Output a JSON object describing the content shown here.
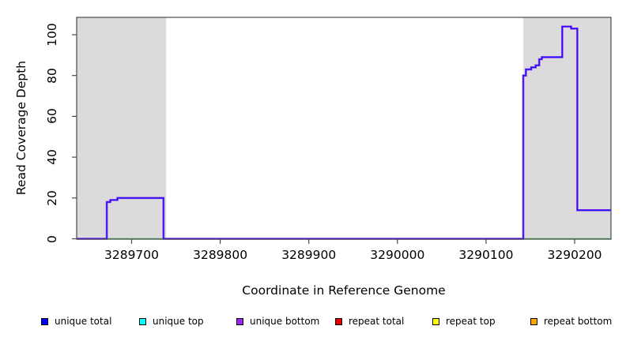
{
  "chart_data": {
    "type": "line",
    "step_mode": "after",
    "title": "",
    "xlabel": "Coordinate in Reference Genome",
    "ylabel": "Read Coverage Depth",
    "xlim": [
      3289638,
      3290241
    ],
    "ylim": [
      0,
      108.5
    ],
    "grid": false,
    "legend_position": "bottom",
    "x_tick_labels": [
      "3289700",
      "3289800",
      "3289900",
      "3290000",
      "3290100",
      "3290200"
    ],
    "x_tick_values": [
      3289700,
      3289800,
      3289900,
      3290000,
      3290100,
      3290200
    ],
    "y_tick_labels": [
      "0",
      "20",
      "40",
      "60",
      "80",
      "100"
    ],
    "y_tick_values": [
      0,
      20,
      40,
      60,
      80,
      100
    ],
    "shaded_regions": {
      "meaning": "repeat regions",
      "color": "#DBDBDB",
      "ranges": [
        [
          3289638,
          3289739
        ],
        [
          3290142,
          3290241
        ]
      ]
    },
    "coverage_steps": [
      [
        3289638,
        0
      ],
      [
        3289672,
        18
      ],
      [
        3289676,
        19
      ],
      [
        3289684,
        20
      ],
      [
        3289736,
        0
      ],
      [
        3290142,
        80
      ],
      [
        3290145,
        83
      ],
      [
        3290151,
        84
      ],
      [
        3290156,
        85
      ],
      [
        3290160,
        88
      ],
      [
        3290163,
        89
      ],
      [
        3290186,
        104
      ],
      [
        3290196,
        103
      ],
      [
        3290203,
        14
      ],
      [
        3290241,
        14
      ]
    ],
    "coverage_line_colors": {
      "outer": "#9B30F0",
      "inner": "#1414FA"
    },
    "zero_depth_green_line": {
      "color": "#3CB054",
      "segments": [
        [
          3289672,
          3289737
        ],
        [
          3290142,
          3290241
        ]
      ]
    },
    "frame_color": "#4A4A4A",
    "tick_color": "#4A4A4A"
  },
  "legend": {
    "items": [
      {
        "label": "unique total",
        "color": "#0000FF"
      },
      {
        "label": "unique top",
        "color": "#00FFFF"
      },
      {
        "label": "unique bottom",
        "color": "#A020F0"
      },
      {
        "label": "repeat total",
        "color": "#E60000"
      },
      {
        "label": "repeat top",
        "color": "#FFFF00"
      },
      {
        "label": "repeat bottom",
        "color": "#FFA500"
      }
    ]
  }
}
